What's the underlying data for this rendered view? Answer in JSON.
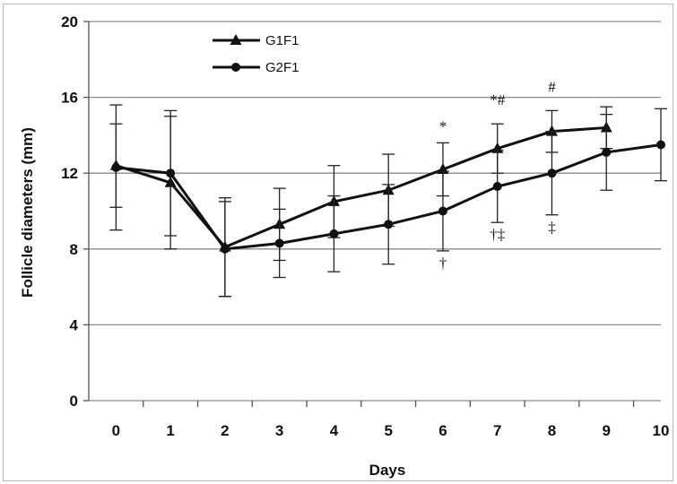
{
  "chart_data": {
    "type": "line",
    "xlabel": "Days",
    "ylabel": "Follicle diameters (mm)",
    "x": [
      0,
      1,
      2,
      3,
      4,
      5,
      6,
      7,
      8,
      9,
      10
    ],
    "ylim": [
      0,
      20
    ],
    "yticks": [
      0,
      4,
      8,
      12,
      16,
      20
    ],
    "grid": true,
    "legend_position": "top-left",
    "series": [
      {
        "name": "G1F1",
        "marker": "triangle",
        "x": [
          0,
          1,
          2,
          3,
          4,
          5,
          6,
          7,
          8,
          9
        ],
        "values": [
          12.4,
          11.5,
          8.1,
          9.3,
          10.5,
          11.1,
          12.2,
          13.3,
          14.2,
          14.4
        ],
        "error": [
          2.2,
          3.5,
          2.6,
          1.9,
          1.9,
          1.9,
          1.4,
          1.3,
          1.1,
          1.1
        ]
      },
      {
        "name": "G2F1",
        "marker": "circle",
        "x": [
          0,
          1,
          2,
          3,
          4,
          5,
          6,
          7,
          8,
          9,
          10
        ],
        "values": [
          12.3,
          12.0,
          8.0,
          8.3,
          8.8,
          9.3,
          10.0,
          11.3,
          12.0,
          13.1,
          13.5
        ],
        "error": [
          3.3,
          3.3,
          2.5,
          1.8,
          2.0,
          2.1,
          2.1,
          1.9,
          2.2,
          2.0,
          1.9
        ]
      }
    ],
    "annotations": [
      {
        "text": "*",
        "x": 6,
        "y": 14.2
      },
      {
        "text": "*#",
        "x": 7,
        "y": 15.6
      },
      {
        "text": "#",
        "x": 8,
        "y": 16.3
      },
      {
        "text": "†",
        "x": 6,
        "y": 7.0
      },
      {
        "text": "†‡",
        "x": 7,
        "y": 8.5
      },
      {
        "text": "‡",
        "x": 8,
        "y": 8.9
      }
    ]
  }
}
